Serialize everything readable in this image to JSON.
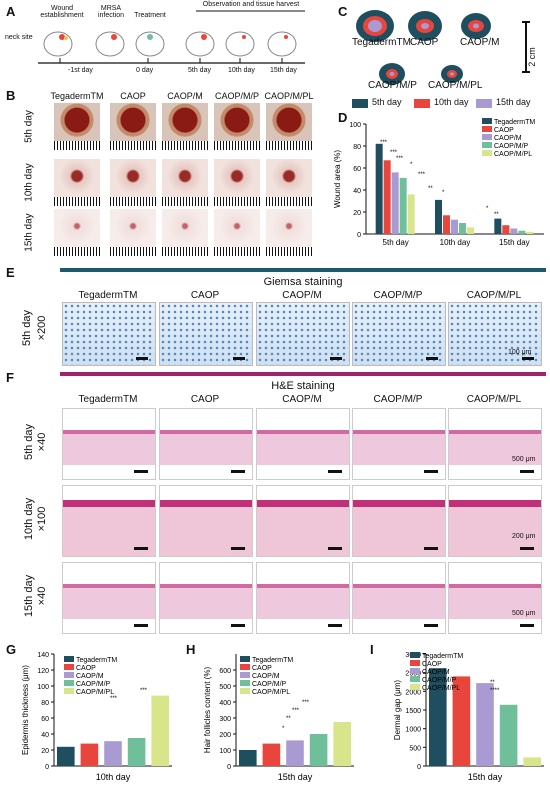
{
  "panels": {
    "A": "A",
    "B": "B",
    "C": "C",
    "D": "D",
    "E": "E",
    "F": "F",
    "G": "G",
    "H": "H",
    "I": "I"
  },
  "panelA": {
    "steps": [
      "Wound establishment",
      "MRSA infection",
      "Treatment",
      "Observation and tissue harvest"
    ],
    "neck_site": "neck site",
    "timeline": [
      "-1st day",
      "0 day",
      "5th day",
      "10th day",
      "15th day"
    ]
  },
  "groups": [
    "TegadermTM",
    "CAOP",
    "CAOP/M",
    "CAOP/M/P",
    "CAOP/M/PL"
  ],
  "panelB": {
    "rows": [
      "5th day",
      "10th day",
      "15th day"
    ]
  },
  "panelC": {
    "scale": "2 cm",
    "legend": [
      "5th day",
      "10th day",
      "15th day"
    ]
  },
  "panelE": {
    "title": "Giemsa staining",
    "row": "5th day",
    "mag": "×200",
    "scale": "100 μm"
  },
  "panelF": {
    "title": "H&E staining",
    "rows": [
      "5th day",
      "10th day",
      "15th day"
    ],
    "mags": [
      "×40",
      "×100",
      "×40"
    ],
    "scales": [
      "500 μm",
      "200 μm",
      "500 μm"
    ]
  },
  "colors": {
    "c1": "#1f4e5f",
    "c2": "#e8453c",
    "c3": "#a99bd1",
    "c4": "#6fbf9a",
    "c5": "#d9e58a",
    "teal": "#1d5a6a",
    "magenta": "#a3226f"
  },
  "chart_data": [
    {
      "type": "bar",
      "panel": "D",
      "ylabel": "Wound area (%)",
      "ylim": [
        0,
        100
      ],
      "yticks": [
        0,
        20,
        40,
        60,
        80,
        100
      ],
      "categories": [
        "5th day",
        "10th day",
        "15th day"
      ],
      "series": [
        {
          "name": "TegadermTM",
          "values": [
            82,
            31,
            14
          ]
        },
        {
          "name": "CAOP",
          "values": [
            67,
            17,
            8
          ]
        },
        {
          "name": "CAOP/M",
          "values": [
            56,
            13,
            5
          ]
        },
        {
          "name": "CAOP/M/P",
          "values": [
            51,
            10,
            3
          ]
        },
        {
          "name": "CAOP/M/PL",
          "values": [
            36,
            6,
            2
          ]
        }
      ],
      "significance": [
        "***",
        "***",
        "***",
        "*",
        "***",
        "**",
        "*",
        "*",
        "**"
      ]
    },
    {
      "type": "bar",
      "panel": "G",
      "ylabel": "Epidermis thickness (μm)",
      "xlabel": "10th day",
      "ylim": [
        0,
        140
      ],
      "yticks": [
        0,
        20,
        40,
        60,
        80,
        100,
        120,
        140
      ],
      "categories": [
        "TegadermTM",
        "CAOP",
        "CAOP/M",
        "CAOP/M/P",
        "CAOP/M/PL"
      ],
      "values": [
        24,
        28,
        31,
        35,
        88
      ],
      "significance": [
        "***",
        "***"
      ]
    },
    {
      "type": "bar",
      "panel": "H",
      "ylabel": "Hair follicles content (%)",
      "xlabel": "15th day",
      "ylim": [
        0,
        700
      ],
      "yticks": [
        0,
        100,
        200,
        300,
        400,
        500,
        600
      ],
      "categories": [
        "TegadermTM",
        "CAOP",
        "CAOP/M",
        "CAOP/M/P",
        "CAOP/M/PL"
      ],
      "values": [
        100,
        140,
        160,
        200,
        275
      ],
      "significance": [
        "*",
        "**",
        "***",
        "***"
      ]
    },
    {
      "type": "bar",
      "panel": "I",
      "ylabel": "Dermal gap (μm)",
      "xlabel": "15th day",
      "ylim": [
        0,
        3000
      ],
      "yticks": [
        0,
        500,
        1000,
        1500,
        2000,
        2500,
        3000
      ],
      "categories": [
        "TegadermTM",
        "CAOP",
        "CAOP/M",
        "CAOP/M/P",
        "CAOP/M/PL"
      ],
      "values": [
        2620,
        2400,
        2220,
        1640,
        230
      ],
      "significance": [
        "**",
        "****"
      ]
    }
  ]
}
